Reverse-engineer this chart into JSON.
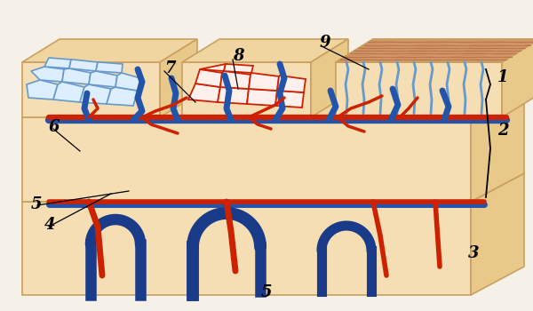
{
  "bg_color": "#f5f0e8",
  "skin_color_light": "#f5deb3",
  "skin_color_medium": "#f0d5a0",
  "skin_color_dark": "#e8c98a",
  "skin_color_edge": "#c9a060",
  "epidermis_color": "#d4956a",
  "vessel_red": "#cc2200",
  "vessel_blue": "#1a3a8a",
  "vessel_blue_light": "#2255aa",
  "lymph_blue": "#6699cc",
  "label_fontsize": 13,
  "bottom_label": "5"
}
